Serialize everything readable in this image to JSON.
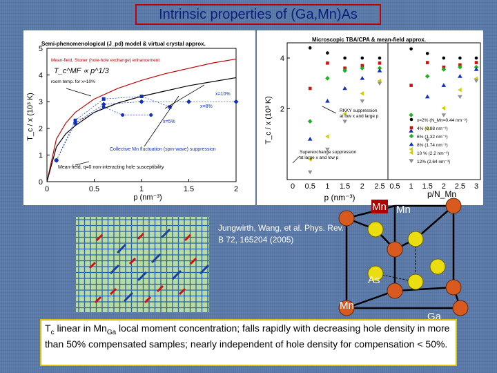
{
  "title": "Intrinsic properties of (Ga,Mn)As",
  "citation": "Jungwirth, Wang, et al. Phys. Rev. B 72, 165204 (2005)",
  "left_chart": {
    "title": "Semi-phenomenological (J_pd) model & virtual crystal approx.",
    "xlabel": "p (nm⁻³)",
    "ylabel": "T_c / x (10³ K)",
    "xticks": [
      "0",
      "0.5",
      "1",
      "1.5",
      "2"
    ],
    "yticks": [
      "0",
      "1",
      "2",
      "3",
      "4",
      "5"
    ],
    "legend_lines": [
      "Mean-field, Stoner (hole-hole exchange) enhancement",
      "T_c^MF ∝ p^1/3",
      "room temp. for x≈10%"
    ],
    "annotations": {
      "x10": "x=10%",
      "x8": "x=8%",
      "x5": "x=5%",
      "collective": "Collective Mn fluctuation (spin-wave) suppression",
      "meanfield": "Mean-field, q=0 non-interacting hole susceptibility"
    }
  },
  "right_chart": {
    "title": "Microscopic TBA/CPA & mean-field approx.",
    "xlabel": "p (nm⁻³)",
    "xlabel2": "p/N_Mn",
    "ylabel": "T_c / x (10³ K)",
    "xticks_left": [
      "0",
      "0.5",
      "1",
      "1.5",
      "2",
      "2.5"
    ],
    "xticks_right": [
      "0.5",
      "1",
      "1.5",
      "2",
      "2.5",
      "3"
    ],
    "yticks": [
      "2",
      "4"
    ],
    "annotations": {
      "rkky": "RKKY suppression\nat low x and large p",
      "superexchange": "Superexchange suppression\nat large x and low p"
    },
    "legend": [
      {
        "label": "x=2% (N_Mn=0.44 nm⁻³)",
        "color": "#000000",
        "marker": "circle"
      },
      {
        "label": "4% (0.88 nm⁻³)",
        "color": "#d01010",
        "marker": "square"
      },
      {
        "label": "6% (1.32 nm⁻³)",
        "color": "#20b020",
        "marker": "diamond"
      },
      {
        "label": "8% (1.74 nm⁻³)",
        "color": "#1030c0",
        "marker": "triangle"
      },
      {
        "label": "10 % (2.2 nm⁻³)",
        "color": "#d0d000",
        "marker": "triangle-left"
      },
      {
        "label": "12% (2.64 nm⁻³)",
        "color": "#909090",
        "marker": "triangle-down"
      }
    ]
  },
  "chart_data": [
    {
      "type": "line",
      "title": "Semi-phenomenological (J_pd) model & virtual crystal approx.",
      "xlabel": "p (nm⁻³)",
      "ylabel": "T_c / x (10³ K)",
      "xlim": [
        0,
        2
      ],
      "ylim": [
        0,
        5
      ],
      "series": [
        {
          "name": "Mean-field, Stoner (hole-hole exchange) enhancement",
          "color": "#c00000",
          "x": [
            0,
            0.1,
            0.2,
            0.3,
            0.5,
            0.75,
            1.0,
            1.25,
            1.5,
            1.75,
            2.0
          ],
          "y": [
            0,
            1.6,
            2.2,
            2.6,
            3.1,
            3.5,
            3.8,
            4.05,
            4.25,
            4.45,
            4.6
          ]
        },
        {
          "name": "Mean-field, q=0 non-interacting hole susceptibility",
          "color": "#000000",
          "x": [
            0,
            0.1,
            0.2,
            0.3,
            0.5,
            0.75,
            1.0,
            1.25,
            1.5,
            1.75,
            2.0
          ],
          "y": [
            0,
            1.3,
            1.8,
            2.1,
            2.6,
            2.95,
            3.2,
            3.4,
            3.6,
            3.75,
            3.9
          ]
        },
        {
          "name": "x=10%",
          "color": "#1030c0",
          "marker": "diamond",
          "x": [
            0.1,
            0.3,
            0.6,
            1.0,
            1.5,
            2.0
          ],
          "y": [
            0.8,
            2.2,
            2.9,
            3.0,
            3.0,
            3.0
          ]
        },
        {
          "name": "x=8%",
          "color": "#1030c0",
          "marker": "square",
          "x": [
            0.1,
            0.3,
            0.6,
            1.0,
            1.3
          ],
          "y": [
            0.8,
            2.3,
            3.1,
            3.2,
            2.8
          ]
        },
        {
          "name": "x=5%",
          "color": "#1030c0",
          "marker": "circle",
          "x": [
            0.3,
            0.6,
            0.8,
            1.1
          ],
          "y": [
            2.2,
            2.8,
            2.5,
            2.5
          ]
        }
      ]
    },
    {
      "type": "scatter",
      "title": "Microscopic TBA/CPA & mean-field approx.",
      "xlabel": "p (nm⁻³)",
      "ylabel": "T_c / x (10³ K)",
      "series": [
        {
          "name": "x=2% (N_Mn=0.44 nm⁻³)",
          "x": [
            0.5,
            1.0,
            1.5,
            2.0,
            2.5
          ],
          "y": [
            4.4,
            4.2,
            4.0,
            4.0,
            4.0
          ]
        },
        {
          "name": "4% (0.88 nm⁻³)",
          "x": [
            0.5,
            1.0,
            1.5,
            2.0,
            2.5
          ],
          "y": [
            2.8,
            3.8,
            3.6,
            3.7,
            3.8
          ]
        },
        {
          "name": "6% (1.32 nm⁻³)",
          "x": [
            0.5,
            1.0,
            1.5,
            2.0,
            2.5
          ],
          "y": [
            1.5,
            3.2,
            3.5,
            3.6,
            3.6
          ]
        },
        {
          "name": "8% (1.74 nm⁻³)",
          "x": [
            0.5,
            1.0,
            1.5,
            2.0,
            2.5
          ],
          "y": [
            0.8,
            2.3,
            2.8,
            3.2,
            3.5
          ]
        },
        {
          "name": "10 % (2.2 nm⁻³)",
          "x": [
            0.5,
            1.0,
            1.5,
            2.0,
            2.5
          ],
          "y": [
            0.0,
            0.9,
            1.8,
            2.6,
            3.1
          ]
        },
        {
          "name": "12% (2.64 nm⁻³)",
          "x": [
            0.5,
            1.0,
            1.5,
            2.0,
            2.5
          ],
          "y": [
            -0.5,
            0.4,
            1.5,
            2.3,
            3.0
          ]
        }
      ]
    }
  ],
  "crystal_labels": {
    "mn_top1": "Mn",
    "mn_top2": "Mn",
    "as": "As",
    "mn_bottom": "Mn",
    "ga": "Ga"
  },
  "caption": {
    "t": "T",
    "c": "c",
    "part1": " linear in Mn",
    "ga": "Ga",
    "part2": " local moment concentration; falls rapidly with decreasing hole density in more than 50% compensated samples; nearly independent of hole density  for compensation < 50%."
  }
}
